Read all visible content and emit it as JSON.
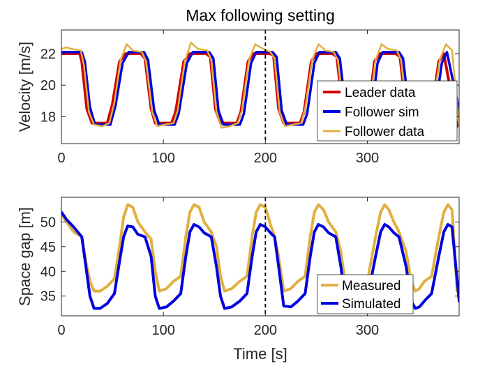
{
  "chart_data": [
    {
      "type": "line",
      "title": "Max following setting",
      "xlabel": "",
      "ylabel": "Velocity [m/s]",
      "xlim": [
        0,
        390
      ],
      "ylim": [
        16.3,
        23.5
      ],
      "xticks": [
        0,
        100,
        200,
        300
      ],
      "yticks": [
        18,
        20,
        22
      ],
      "xtick_labels": [
        "0",
        "100",
        "200",
        "300"
      ],
      "ytick_labels": [
        "18",
        "20",
        "22"
      ],
      "vline_x": 200,
      "legend_position": "bottom-right",
      "series": [
        {
          "name": "Leader data",
          "color": "#d00000",
          "x": [
            0,
            18,
            20,
            25,
            30,
            45,
            50,
            57,
            63,
            78,
            82,
            88,
            92,
            108,
            112,
            120,
            126,
            142,
            146,
            151,
            156,
            172,
            176,
            183,
            188,
            204,
            208,
            213,
            218,
            234,
            238,
            245,
            250,
            266,
            270,
            276,
            281,
            297,
            301,
            307,
            312,
            328,
            332,
            338,
            343,
            359,
            363,
            370,
            375,
            388
          ],
          "y": [
            22,
            22,
            21.5,
            18.5,
            17.6,
            17.6,
            18.8,
            21.5,
            22,
            22,
            21.7,
            18.5,
            17.6,
            17.6,
            18.3,
            21.5,
            22,
            22,
            21.8,
            18.5,
            17.6,
            17.6,
            18.3,
            21.5,
            22,
            22,
            21.9,
            18.5,
            17.6,
            17.6,
            18.3,
            21.5,
            22,
            22,
            21.8,
            18.5,
            17.6,
            17.6,
            18.3,
            21.5,
            22,
            22,
            21.8,
            18.5,
            17.6,
            17.6,
            18.3,
            21.5,
            22,
            17.4
          ]
        },
        {
          "name": "Follower sim",
          "color": "#0000e0",
          "x": [
            0,
            20,
            23,
            28,
            33,
            48,
            53,
            60,
            66,
            81,
            85,
            91,
            96,
            111,
            115,
            123,
            129,
            145,
            149,
            154,
            159,
            175,
            179,
            186,
            191,
            207,
            211,
            216,
            221,
            237,
            241,
            248,
            253,
            269,
            273,
            279,
            284,
            300,
            304,
            310,
            315,
            331,
            335,
            341,
            346,
            362,
            366,
            373,
            378,
            390
          ],
          "y": [
            22.1,
            22.1,
            21.5,
            18.6,
            17.5,
            17.5,
            18.7,
            21.4,
            22.1,
            22.1,
            21.6,
            18.4,
            17.5,
            17.5,
            18.2,
            21.4,
            22.1,
            22.1,
            21.7,
            18.4,
            17.5,
            17.5,
            18.2,
            21.4,
            22.1,
            22.1,
            21.8,
            18.4,
            17.5,
            17.5,
            18.2,
            21.4,
            22.1,
            22.1,
            21.7,
            18.4,
            17.5,
            17.5,
            18.2,
            21.4,
            22.1,
            22.1,
            21.7,
            18.4,
            17.5,
            17.5,
            18.2,
            21.4,
            22.1,
            18.4
          ]
        },
        {
          "name": "Follower data",
          "color": "#e0b040",
          "x": [
            0,
            5,
            10,
            19,
            22,
            27,
            32,
            40,
            47,
            52,
            58,
            64,
            70,
            79,
            83,
            89,
            94,
            101,
            110,
            114,
            121,
            127,
            134,
            143,
            147,
            152,
            157,
            165,
            173,
            177,
            184,
            190,
            198,
            205,
            209,
            214,
            219,
            227,
            235,
            239,
            246,
            252,
            259,
            267,
            271,
            277,
            282,
            290,
            298,
            302,
            308,
            314,
            320,
            329,
            333,
            339,
            344,
            352,
            360,
            364,
            371,
            377,
            383,
            390
          ],
          "y": [
            22.3,
            22.4,
            22.3,
            22.2,
            21.3,
            18.3,
            17.5,
            17.4,
            17.6,
            18.9,
            21.6,
            22.6,
            22.2,
            22.1,
            21.5,
            18.3,
            17.4,
            17.5,
            17.6,
            18.4,
            21.5,
            22.7,
            22.3,
            22.2,
            21.6,
            18.3,
            17.3,
            17.4,
            17.6,
            18.4,
            21.6,
            22.6,
            22.3,
            22.1,
            21.7,
            18.3,
            17.4,
            17.5,
            17.6,
            18.5,
            21.6,
            22.6,
            22.2,
            22.1,
            21.6,
            18.3,
            17.4,
            17.5,
            17.6,
            18.5,
            21.6,
            22.6,
            22.3,
            22.2,
            21.6,
            18.3,
            17.4,
            17.5,
            17.6,
            18.5,
            21.6,
            22.6,
            22.2,
            17.5
          ]
        }
      ]
    },
    {
      "type": "line",
      "title": "",
      "xlabel": "Time [s]",
      "ylabel": "Space gap [m]",
      "xlim": [
        0,
        390
      ],
      "ylim": [
        31,
        55
      ],
      "xticks": [
        0,
        100,
        200,
        300
      ],
      "yticks": [
        35,
        40,
        45,
        50
      ],
      "xtick_labels": [
        "0",
        "100",
        "200",
        "300"
      ],
      "ytick_labels": [
        "35",
        "40",
        "45",
        "50"
      ],
      "vline_x": 200,
      "legend_position": "bottom-right",
      "series": [
        {
          "name": "Measured",
          "color": "#e0b040",
          "x": [
            0,
            5,
            12,
            20,
            24,
            28,
            32,
            38,
            45,
            52,
            57,
            61,
            65,
            70,
            75,
            82,
            88,
            92,
            96,
            103,
            110,
            117,
            122,
            126,
            130,
            135,
            140,
            147,
            152,
            156,
            160,
            167,
            175,
            182,
            187,
            191,
            195,
            200,
            205,
            209,
            213,
            218,
            225,
            232,
            239,
            244,
            248,
            252,
            257,
            262,
            269,
            274,
            278,
            282,
            287,
            294,
            301,
            308,
            313,
            317,
            321,
            326,
            331,
            338,
            343,
            347,
            351,
            356,
            363,
            370,
            375,
            379,
            383,
            388
          ],
          "y": [
            51.5,
            50,
            48,
            47,
            42,
            38,
            36,
            36,
            37,
            38.5,
            45,
            51,
            53.5,
            53,
            50,
            48,
            46.5,
            40,
            36,
            36.5,
            38,
            39,
            47,
            52,
            53.5,
            53,
            50,
            48,
            45,
            39,
            36,
            36.5,
            38,
            39,
            47,
            52,
            53.5,
            53,
            49.5,
            47,
            43,
            36,
            36.5,
            38,
            39,
            47,
            52,
            53.5,
            52.5,
            50,
            48,
            44,
            38,
            36,
            36.5,
            38,
            39,
            47,
            52,
            53.5,
            52.5,
            50,
            48,
            44,
            38,
            36,
            36.5,
            38,
            39,
            47,
            52,
            53.5,
            52.5,
            36
          ]
        },
        {
          "name": "Simulated",
          "color": "#0000e0",
          "x": [
            0,
            5,
            12,
            20,
            24,
            28,
            32,
            38,
            45,
            52,
            57,
            61,
            65,
            70,
            75,
            82,
            88,
            92,
            96,
            103,
            110,
            117,
            122,
            126,
            130,
            135,
            140,
            147,
            152,
            156,
            160,
            167,
            175,
            182,
            187,
            191,
            195,
            200,
            205,
            209,
            213,
            218,
            225,
            232,
            239,
            244,
            248,
            252,
            257,
            262,
            269,
            274,
            278,
            282,
            287,
            294,
            301,
            308,
            313,
            317,
            321,
            326,
            331,
            338,
            343,
            347,
            351,
            356,
            363,
            370,
            375,
            379,
            383,
            390
          ],
          "y": [
            52,
            50.5,
            49,
            47,
            41,
            35,
            32.5,
            32.5,
            33.5,
            35.5,
            42,
            47,
            49.2,
            49,
            47.5,
            47,
            43,
            35,
            32.5,
            32.8,
            34,
            35.5,
            43,
            48,
            49.5,
            49,
            47.8,
            47,
            41,
            35,
            32.5,
            32.8,
            34,
            35.5,
            43,
            48,
            49.5,
            49,
            47.8,
            47,
            41,
            33,
            32.8,
            34,
            35.5,
            43,
            48,
            49.5,
            49,
            47.8,
            47,
            41,
            34,
            32.5,
            32.8,
            34,
            35.5,
            43,
            48,
            49.5,
            49,
            47.8,
            47,
            41,
            34,
            32.5,
            32.8,
            34,
            35.5,
            43,
            48,
            49.5,
            49,
            34
          ]
        }
      ]
    }
  ]
}
